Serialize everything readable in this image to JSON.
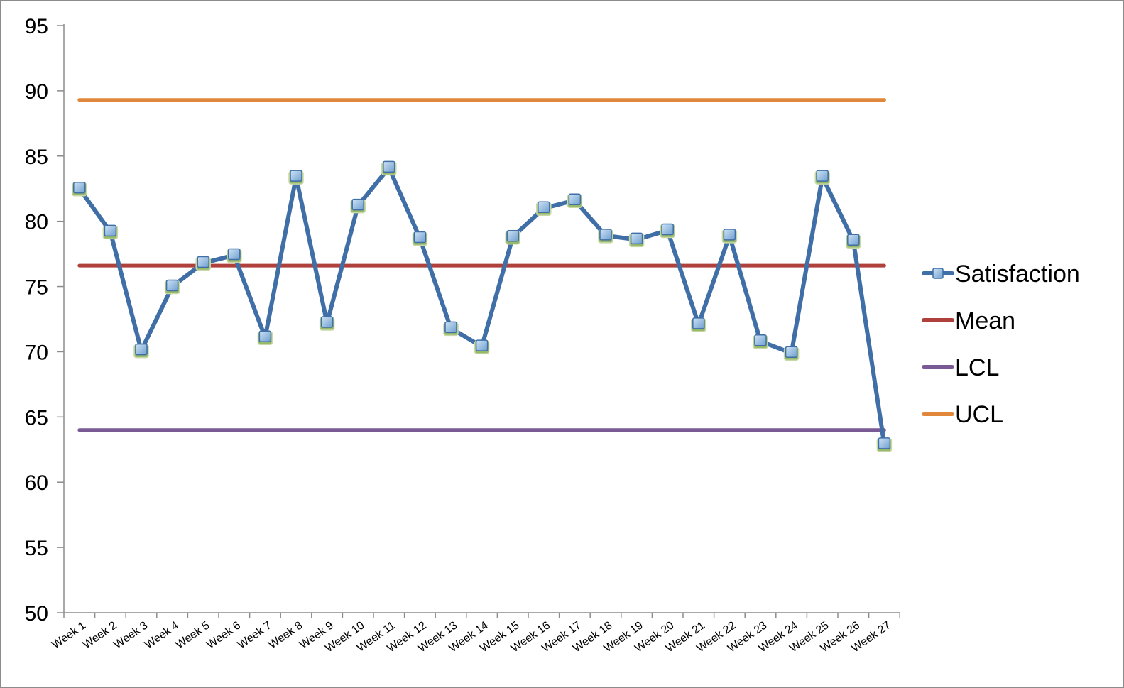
{
  "chart_data": {
    "type": "line",
    "title": "",
    "xlabel": "",
    "ylabel": "",
    "ylim": [
      50,
      95
    ],
    "y_ticks": [
      50,
      55,
      60,
      65,
      70,
      75,
      80,
      85,
      90,
      95
    ],
    "grid": false,
    "legend_position": "right",
    "categories": [
      "Week 1",
      "Week 2",
      "Week 3",
      "Week 4",
      "Week 5",
      "Week 6",
      "Week 7",
      "Week 8",
      "Week 9",
      "Week 10",
      "Week 11",
      "Week 12",
      "Week 13",
      "Week 14",
      "Week 15",
      "Week 16",
      "Week 17",
      "Week 18",
      "Week 19",
      "Week 20",
      "Week 21",
      "Week 22",
      "Week 23",
      "Week 24",
      "Week 25",
      "Week 26",
      "Week 27"
    ],
    "series": [
      {
        "name": "Satisfaction",
        "color": "#3F6FA6",
        "marker": "square",
        "values": [
          82.5,
          79.2,
          70.1,
          75.0,
          76.8,
          77.4,
          71.1,
          83.4,
          72.2,
          81.2,
          84.1,
          78.7,
          71.8,
          70.4,
          78.8,
          81.0,
          81.6,
          78.9,
          78.6,
          79.3,
          72.1,
          78.9,
          70.8,
          69.9,
          83.4,
          78.5,
          62.9
        ]
      },
      {
        "name": "Mean",
        "color": "#B0403C",
        "values": [
          76.6,
          76.6,
          76.6,
          76.6,
          76.6,
          76.6,
          76.6,
          76.6,
          76.6,
          76.6,
          76.6,
          76.6,
          76.6,
          76.6,
          76.6,
          76.6,
          76.6,
          76.6,
          76.6,
          76.6,
          76.6,
          76.6,
          76.6,
          76.6,
          76.6,
          76.6,
          76.6
        ]
      },
      {
        "name": "LCL",
        "color": "#7A5A95",
        "values": [
          64.0,
          64.0,
          64.0,
          64.0,
          64.0,
          64.0,
          64.0,
          64.0,
          64.0,
          64.0,
          64.0,
          64.0,
          64.0,
          64.0,
          64.0,
          64.0,
          64.0,
          64.0,
          64.0,
          64.0,
          64.0,
          64.0,
          64.0,
          64.0,
          64.0,
          64.0,
          64.0
        ]
      },
      {
        "name": "UCL",
        "color": "#E0873A",
        "values": [
          89.3,
          89.3,
          89.3,
          89.3,
          89.3,
          89.3,
          89.3,
          89.3,
          89.3,
          89.3,
          89.3,
          89.3,
          89.3,
          89.3,
          89.3,
          89.3,
          89.3,
          89.3,
          89.3,
          89.3,
          89.3,
          89.3,
          89.3,
          89.3,
          89.3,
          89.3,
          89.3
        ]
      }
    ],
    "legend_order": [
      "Satisfaction",
      "Mean",
      "LCL",
      "UCL"
    ]
  }
}
